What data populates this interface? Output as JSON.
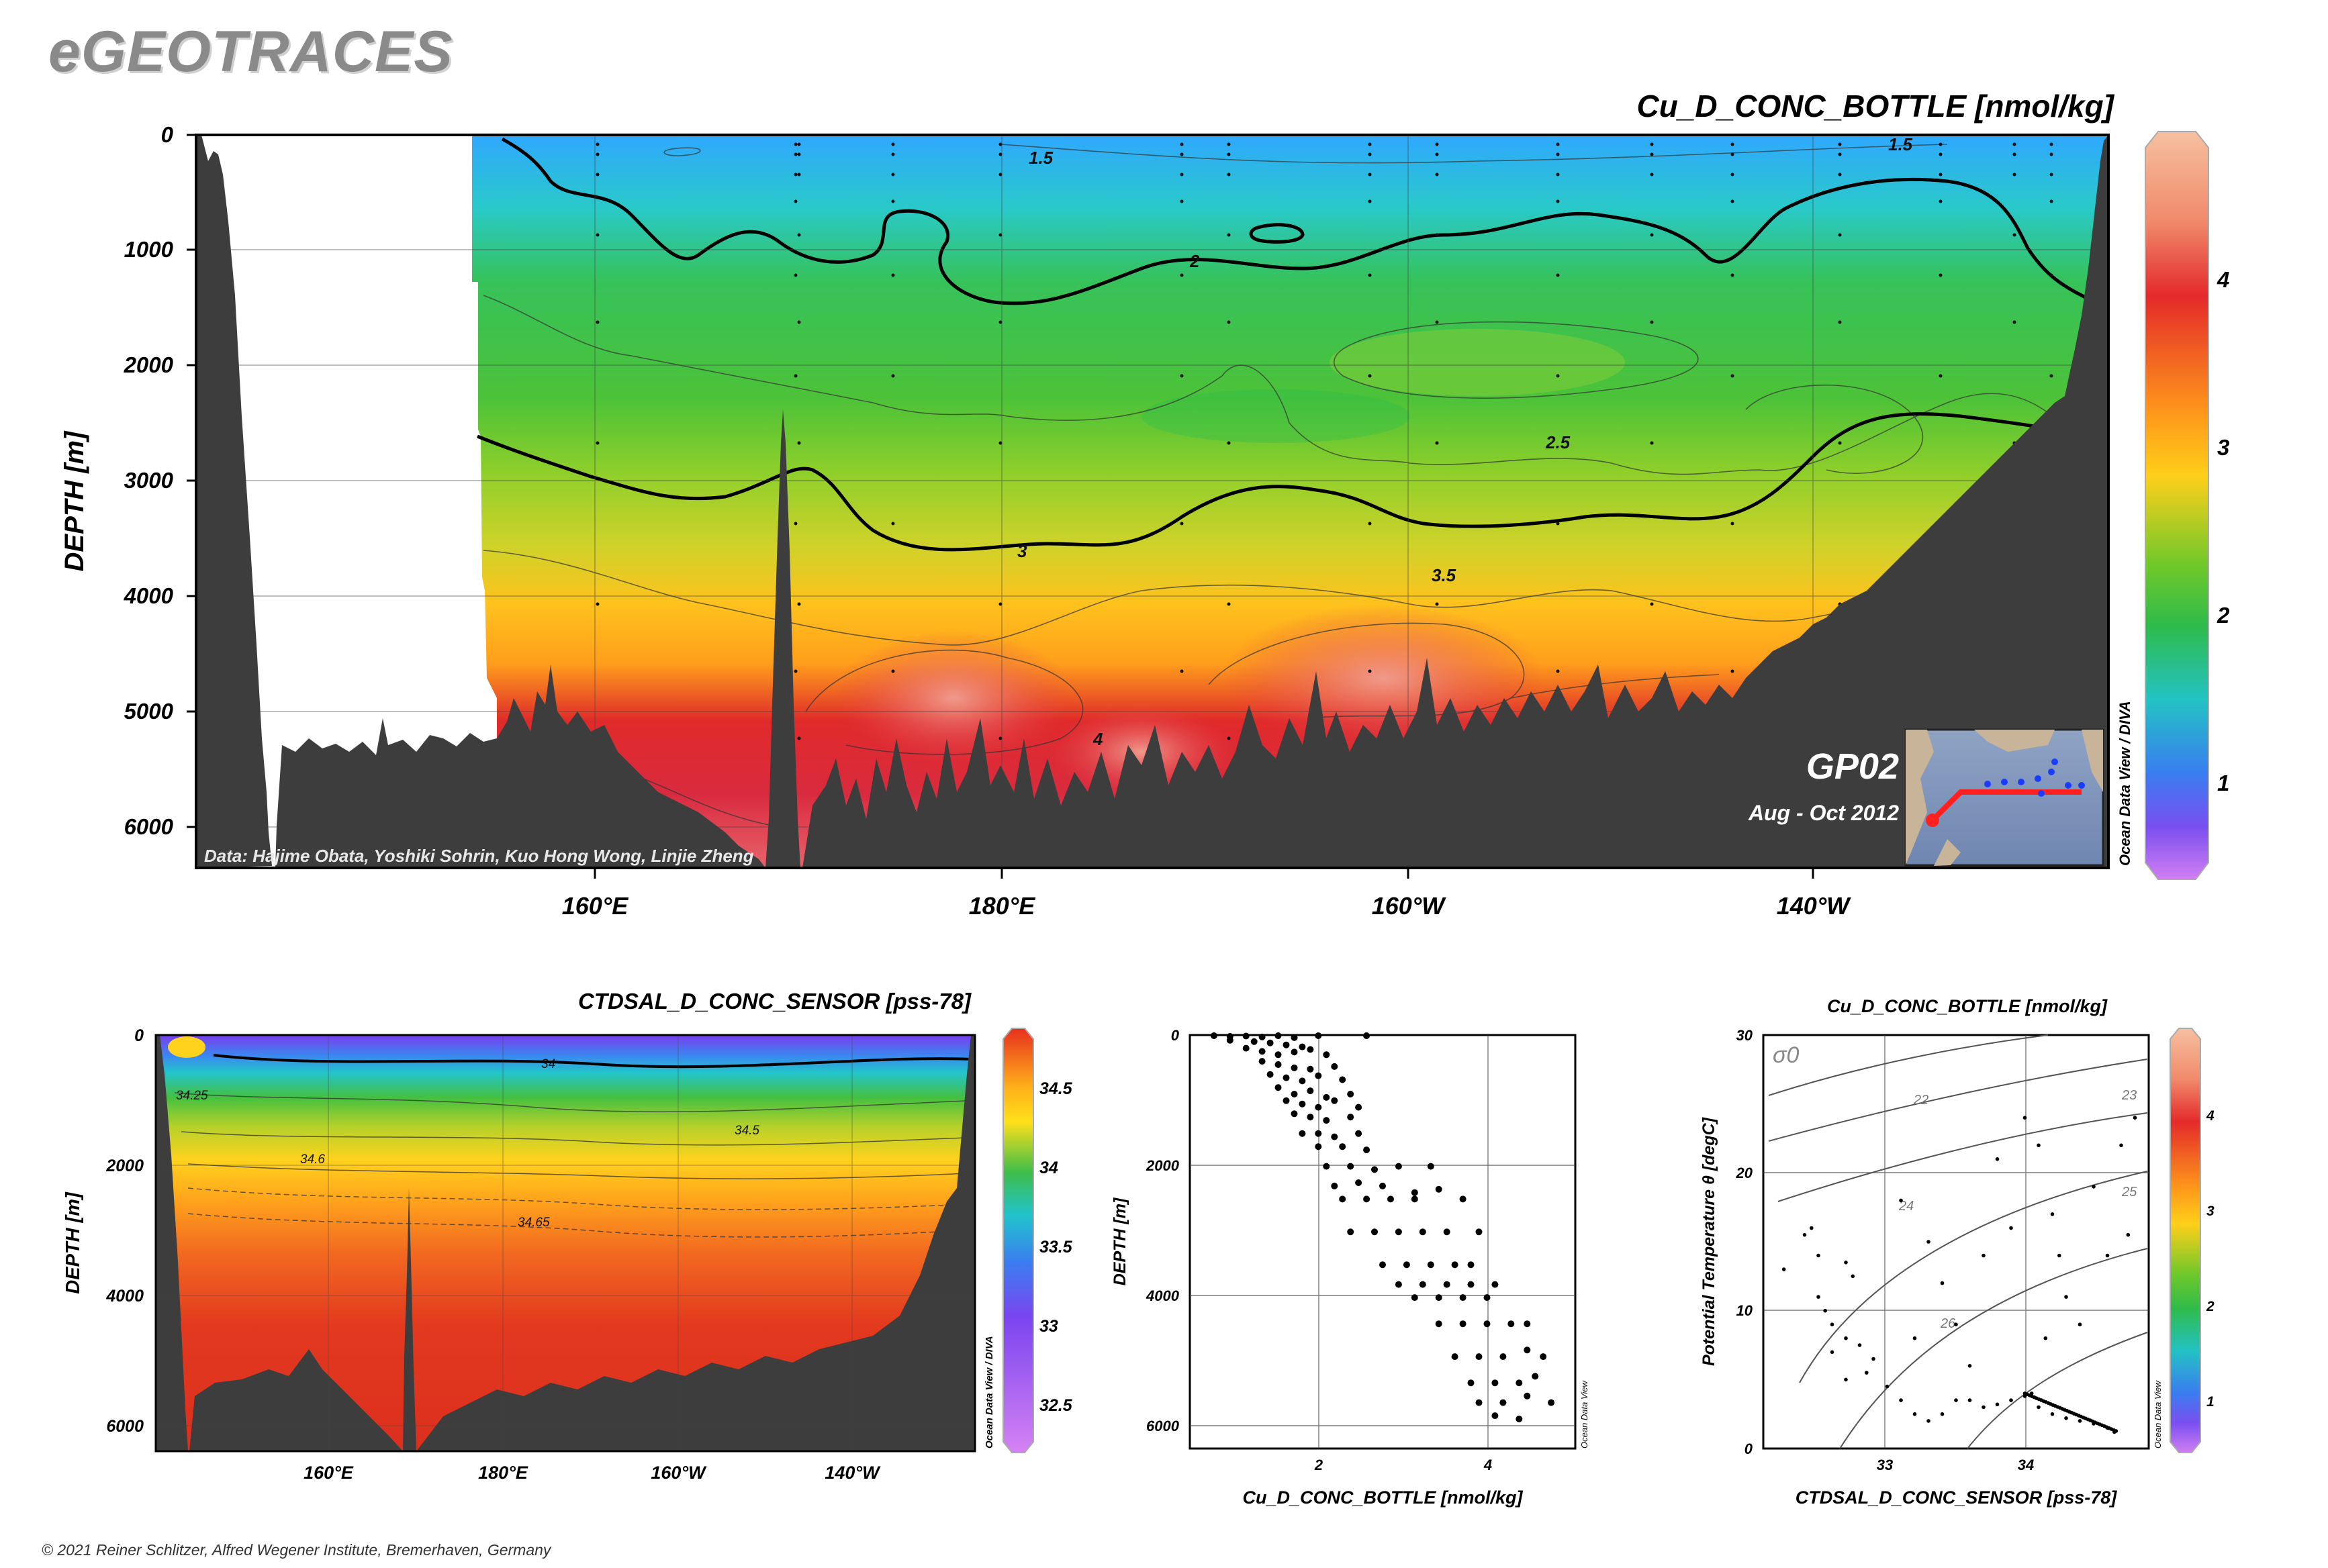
{
  "logo": "eGEOTRACES",
  "copyright": "© 2021 Reiner Schlitzer, Alfred Wegener Institute, Bremerhaven, Germany",
  "main_section": {
    "title": "Cu_D_CONC_BOTTLE [nmol/kg]",
    "ylabel": "DEPTH [m]",
    "y_ticks": [
      "0",
      "1000",
      "2000",
      "3000",
      "4000",
      "5000",
      "6000"
    ],
    "x_ticks": [
      "160°E",
      "180°E",
      "160°W",
      "140°W"
    ],
    "credit": "Data: Hajime Obata, Yoshiki Sohrin, Kuo Hong Wong, Linjie Zheng",
    "cruise": "GP02",
    "period": "Aug - Oct 2012",
    "vertical_note": "Ocean Data View / DIVA",
    "contour_labels": [
      "1.5",
      "1.5",
      "2",
      "2.5",
      "3",
      "3.5",
      "4"
    ],
    "colorbar_ticks": [
      "4",
      "3",
      "2",
      "1"
    ]
  },
  "salinity_section": {
    "title": "CTDSAL_D_CONC_SENSOR [pss-78]",
    "ylabel": "DEPTH [m]",
    "y_ticks": [
      "0",
      "2000",
      "4000",
      "6000"
    ],
    "x_ticks": [
      "160°E",
      "180°E",
      "160°W",
      "140°W"
    ],
    "contour_labels": [
      "34",
      "34.25",
      "34.5",
      "34.6",
      "34.65"
    ],
    "colorbar_ticks": [
      "34.5",
      "34",
      "33.5",
      "33",
      "32.5"
    ],
    "vertical_note": "Ocean Data View / DIVA"
  },
  "profile_plot": {
    "xlabel": "Cu_D_CONC_BOTTLE [nmol/kg]",
    "ylabel": "DEPTH [m]",
    "x_ticks": [
      "2",
      "4"
    ],
    "y_ticks": [
      "0",
      "2000",
      "4000",
      "6000"
    ],
    "vertical_note": "Ocean Data View"
  },
  "ts_plot": {
    "title": "Cu_D_CONC_BOTTLE [nmol/kg]",
    "xlabel": "CTDSAL_D_CONC_SENSOR [pss-78]",
    "ylabel": "Potential Temperature θ [degC]",
    "x_ticks": [
      "33",
      "34"
    ],
    "y_ticks": [
      "30",
      "20",
      "10",
      "0"
    ],
    "sigma_label": "σ0",
    "sigma_contours": [
      "22",
      "23",
      "24",
      "25",
      "26"
    ],
    "colorbar_ticks": [
      "4",
      "3",
      "2",
      "1"
    ],
    "vertical_note": "Ocean Data View"
  },
  "chart_data": [
    {
      "type": "heatmap",
      "title": "Cu_D_CONC_BOTTLE [nmol/kg]",
      "xlabel": "",
      "ylabel": "DEPTH [m]",
      "x_ticks": [
        "160°E",
        "180°E",
        "160°W",
        "140°W"
      ],
      "ylim": [
        6300,
        0
      ],
      "colorbar": {
        "min": 0.5,
        "max": 5,
        "ticks": [
          1,
          2,
          3,
          4
        ]
      },
      "contours": [
        1.5,
        2,
        2.5,
        3,
        3.5,
        4
      ],
      "profile_concentration_vs_depth": [
        [
          1.5,
          0
        ],
        [
          1.6,
          500
        ],
        [
          2.0,
          1000
        ],
        [
          2.4,
          2000
        ],
        [
          2.7,
          3000
        ],
        [
          3.3,
          4000
        ],
        [
          3.9,
          5000
        ],
        [
          4.2,
          6000
        ]
      ]
    },
    {
      "type": "heatmap",
      "title": "CTDSAL_D_CONC_SENSOR [pss-78]",
      "ylabel": "DEPTH [m]",
      "ylim": [
        6300,
        0
      ],
      "colorbar": {
        "min": 32.3,
        "max": 34.8,
        "ticks": [
          32.5,
          33,
          33.5,
          34,
          34.5
        ]
      },
      "contours": [
        34,
        34.25,
        34.5,
        34.6,
        34.65
      ]
    },
    {
      "type": "scatter",
      "xlabel": "Cu_D_CONC_BOTTLE [nmol/kg]",
      "ylabel": "DEPTH [m]",
      "xlim": [
        0.4,
        5.2
      ],
      "ylim": [
        6300,
        0
      ],
      "points": [
        [
          0.7,
          10
        ],
        [
          0.9,
          20
        ],
        [
          1.1,
          15
        ],
        [
          1.3,
          30
        ],
        [
          1.5,
          10
        ],
        [
          1.7,
          40
        ],
        [
          2.0,
          10
        ],
        [
          2.6,
          10
        ],
        [
          0.9,
          80
        ],
        [
          1.2,
          100
        ],
        [
          1.4,
          120
        ],
        [
          1.6,
          150
        ],
        [
          1.8,
          180
        ],
        [
          1.1,
          200
        ],
        [
          1.3,
          250
        ],
        [
          1.5,
          300
        ],
        [
          1.7,
          260
        ],
        [
          1.9,
          220
        ],
        [
          2.1,
          300
        ],
        [
          1.3,
          400
        ],
        [
          1.5,
          450
        ],
        [
          1.7,
          500
        ],
        [
          1.9,
          520
        ],
        [
          2.2,
          480
        ],
        [
          1.4,
          600
        ],
        [
          1.6,
          650
        ],
        [
          1.8,
          700
        ],
        [
          2.0,
          620
        ],
        [
          2.3,
          680
        ],
        [
          1.5,
          800
        ],
        [
          1.7,
          900
        ],
        [
          1.9,
          850
        ],
        [
          2.1,
          950
        ],
        [
          2.4,
          900
        ],
        [
          1.6,
          1000
        ],
        [
          1.8,
          1050
        ],
        [
          2.0,
          1100
        ],
        [
          2.2,
          1000
        ],
        [
          2.5,
          1100
        ],
        [
          1.7,
          1200
        ],
        [
          1.9,
          1250
        ],
        [
          2.1,
          1300
        ],
        [
          2.4,
          1250
        ],
        [
          1.8,
          1500
        ],
        [
          2.0,
          1500
        ],
        [
          2.2,
          1550
        ],
        [
          2.5,
          1500
        ],
        [
          2.0,
          1700
        ],
        [
          2.3,
          1700
        ],
        [
          2.6,
          1750
        ],
        [
          2.1,
          2000
        ],
        [
          2.4,
          2000
        ],
        [
          2.7,
          2050
        ],
        [
          3.0,
          2000
        ],
        [
          3.4,
          2000
        ],
        [
          2.2,
          2300
        ],
        [
          2.5,
          2250
        ],
        [
          2.8,
          2300
        ],
        [
          3.2,
          2400
        ],
        [
          3.5,
          2350
        ],
        [
          2.3,
          2500
        ],
        [
          2.6,
          2500
        ],
        [
          2.9,
          2500
        ],
        [
          3.2,
          2500
        ],
        [
          3.8,
          2500
        ],
        [
          2.4,
          3000
        ],
        [
          2.7,
          3000
        ],
        [
          3.0,
          3000
        ],
        [
          3.3,
          3000
        ],
        [
          3.6,
          3000
        ],
        [
          4.0,
          3000
        ],
        [
          2.8,
          3500
        ],
        [
          3.1,
          3500
        ],
        [
          3.4,
          3500
        ],
        [
          3.7,
          3500
        ],
        [
          3.9,
          3500
        ],
        [
          3.0,
          3800
        ],
        [
          3.3,
          3800
        ],
        [
          3.6,
          3800
        ],
        [
          3.9,
          3800
        ],
        [
          4.2,
          3800
        ],
        [
          3.2,
          4000
        ],
        [
          3.5,
          4000
        ],
        [
          3.8,
          4000
        ],
        [
          4.1,
          4000
        ],
        [
          3.5,
          4400
        ],
        [
          3.8,
          4400
        ],
        [
          4.1,
          4400
        ],
        [
          4.4,
          4400
        ],
        [
          4.6,
          4400
        ],
        [
          3.7,
          4900
        ],
        [
          4.0,
          4900
        ],
        [
          4.3,
          4900
        ],
        [
          4.6,
          4800
        ],
        [
          4.8,
          4900
        ],
        [
          3.9,
          5300
        ],
        [
          4.2,
          5300
        ],
        [
          4.5,
          5300
        ],
        [
          4.7,
          5200
        ],
        [
          4.0,
          5600
        ],
        [
          4.3,
          5600
        ],
        [
          4.6,
          5500
        ],
        [
          4.9,
          5600
        ],
        [
          4.2,
          5800
        ],
        [
          4.5,
          5850
        ]
      ]
    },
    {
      "type": "scatter",
      "xlabel": "CTDSAL_D_CONC_SENSOR [pss-78]",
      "ylabel": "Potential Temperature θ [degC]",
      "xlim": [
        32.1,
        34.9
      ],
      "ylim": [
        0,
        30
      ],
      "sigma0_isopycnals": [
        22,
        23,
        24,
        25,
        26
      ],
      "points": [
        [
          32.25,
          13
        ],
        [
          32.4,
          15.5
        ],
        [
          32.45,
          16
        ],
        [
          32.5,
          14
        ],
        [
          32.5,
          11
        ],
        [
          32.55,
          10
        ],
        [
          32.6,
          9
        ],
        [
          32.7,
          13.5
        ],
        [
          32.75,
          12.5
        ],
        [
          32.6,
          7
        ],
        [
          32.7,
          8
        ],
        [
          32.8,
          7.5
        ],
        [
          32.9,
          6.5
        ],
        [
          32.7,
          5
        ],
        [
          32.85,
          5.5
        ],
        [
          33.0,
          4.5
        ],
        [
          33.1,
          3.5
        ],
        [
          33.2,
          2.5
        ],
        [
          33.3,
          2
        ],
        [
          33.4,
          2.5
        ],
        [
          33.5,
          3.5
        ],
        [
          33.6,
          3.5
        ],
        [
          33.7,
          3
        ],
        [
          33.8,
          3.2
        ],
        [
          33.9,
          3.5
        ],
        [
          34.0,
          3.8
        ],
        [
          34.05,
          4
        ],
        [
          34.1,
          3
        ],
        [
          34.2,
          2.5
        ],
        [
          34.3,
          2.2
        ],
        [
          34.4,
          2
        ],
        [
          34.5,
          1.8
        ],
        [
          34.6,
          1.5
        ],
        [
          34.65,
          1.2
        ],
        [
          33.1,
          18
        ],
        [
          33.3,
          15
        ],
        [
          33.4,
          12
        ],
        [
          33.5,
          9
        ],
        [
          33.7,
          14
        ],
        [
          33.8,
          21
        ],
        [
          33.9,
          16
        ],
        [
          34.0,
          24
        ],
        [
          34.1,
          22
        ],
        [
          34.2,
          17
        ],
        [
          34.25,
          14
        ],
        [
          34.3,
          11
        ],
        [
          34.4,
          9
        ],
        [
          34.5,
          19
        ],
        [
          34.6,
          14
        ],
        [
          34.7,
          22
        ],
        [
          34.75,
          15.5
        ],
        [
          34.8,
          24
        ],
        [
          33.2,
          8
        ],
        [
          33.6,
          6
        ],
        [
          34.15,
          8
        ]
      ]
    }
  ]
}
